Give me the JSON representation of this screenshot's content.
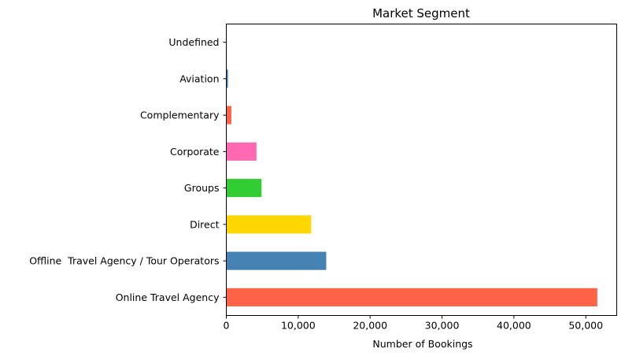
{
  "chart_data": {
    "type": "bar",
    "orientation": "horizontal",
    "title": "Market Segment",
    "xlabel": "Number of Bookings",
    "ylabel": "",
    "categories": [
      "Online Travel Agency",
      "Offline  Travel Agency / Tour Operators",
      "Direct",
      "Groups",
      "Corporate",
      "Complementary",
      "Aviation",
      "Undefined"
    ],
    "values": [
      51600,
      13900,
      11800,
      4900,
      4200,
      700,
      230,
      2
    ],
    "colors": [
      "#FF6347",
      "#4682B4",
      "#FFD700",
      "#32CD32",
      "#FF69B4",
      "#FF6347",
      "#4682B4",
      "#FFD700"
    ],
    "xlim": [
      0,
      54300
    ],
    "x_ticks": [
      0,
      10000,
      20000,
      30000,
      40000,
      50000
    ],
    "x_tick_labels": [
      "0",
      "10,000",
      "20,000",
      "30,000",
      "40,000",
      "50,000"
    ],
    "grid": false,
    "legend": "none"
  }
}
